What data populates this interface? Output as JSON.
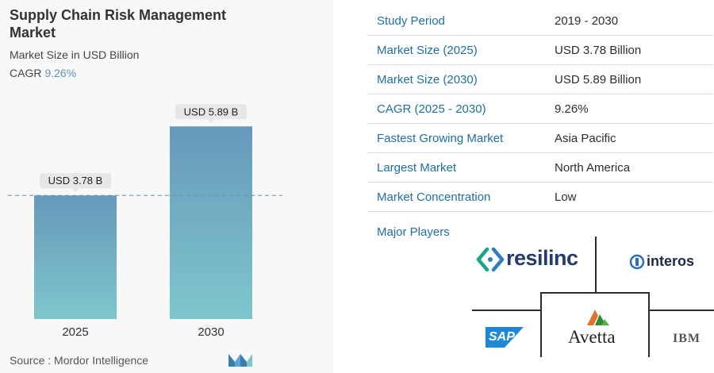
{
  "header": {
    "title": "Supply Chain Risk Management Market",
    "subtitle": "Market Size in USD Billion",
    "cagr_label": "CAGR",
    "cagr_value": "9.26%"
  },
  "chart_data": {
    "type": "bar",
    "categories": [
      "2025",
      "2030"
    ],
    "values": [
      3.78,
      5.89
    ],
    "value_labels": [
      "USD 3.78 B",
      "USD 5.89 B"
    ],
    "ylim": [
      0,
      6.6
    ],
    "reference_line": "dashed line at the 2025 value",
    "colors": {
      "bar_top": "#6699bb",
      "bar_bottom": "#7fc6cc",
      "dashed_line": "#6a94b0"
    }
  },
  "footer": {
    "source": "Source :  Mordor Intelligence"
  },
  "stats": [
    {
      "label": "Study Period",
      "value": "2019 - 2030"
    },
    {
      "label": "Market Size (2025)",
      "value": "USD 3.78 Billion"
    },
    {
      "label": "Market Size (2030)",
      "value": "USD 5.89 Billion"
    },
    {
      "label": "CAGR (2025 - 2030)",
      "value": "9.26%"
    },
    {
      "label": "Fastest Growing Market",
      "value": "Asia Pacific"
    },
    {
      "label": "Largest Market",
      "value": "North America"
    },
    {
      "label": "Market Concentration",
      "value": "Low"
    }
  ],
  "players": {
    "label": "Major Players",
    "logos": [
      "resilinc",
      "interos",
      "SAP",
      "Avetta",
      "IBM"
    ]
  },
  "colors": {
    "accent": "#1f6fa1",
    "cagr_text": "#5f94b5"
  }
}
